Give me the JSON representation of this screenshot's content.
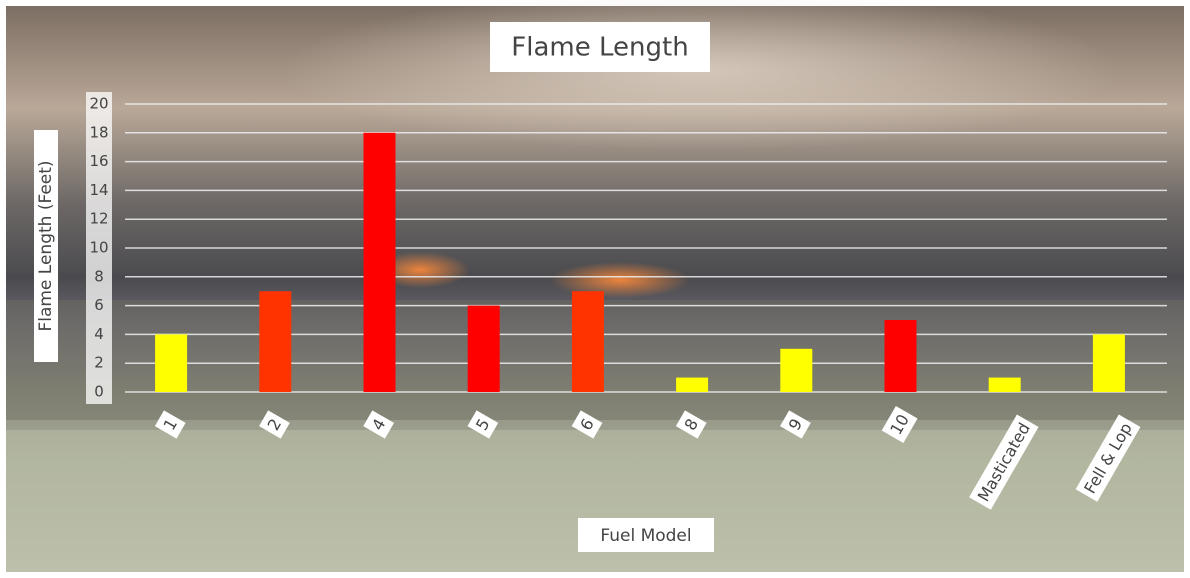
{
  "chart_data": {
    "type": "bar",
    "title": "Flame Length",
    "x_label": "Fuel Model",
    "y_label": "Flame Length (Feet)",
    "categories": [
      "1",
      "2",
      "4",
      "5",
      "6",
      "8",
      "9",
      "10",
      "Masticated",
      "Fell & Lop"
    ],
    "values": [
      4,
      7,
      18,
      6,
      7,
      1,
      3,
      5,
      1,
      4
    ],
    "colors": [
      "#ffff00",
      "#ff3300",
      "#ff0000",
      "#ff0000",
      "#ff3300",
      "#ffff00",
      "#ffff00",
      "#ff0000",
      "#ffff00",
      "#ffff00"
    ],
    "ylim": [
      0,
      20
    ],
    "yticks": [
      0,
      2,
      4,
      6,
      8,
      10,
      12,
      14,
      16,
      18,
      20
    ],
    "grid": true
  }
}
